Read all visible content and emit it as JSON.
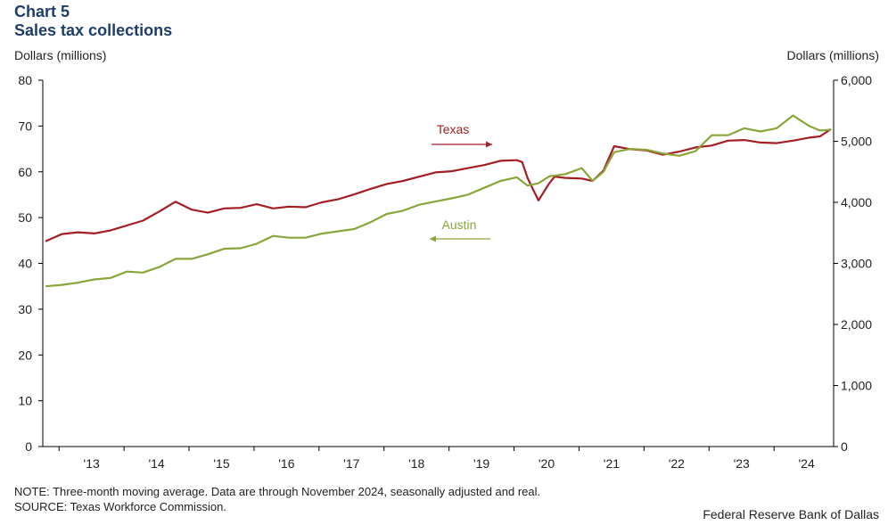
{
  "header": {
    "chart_number": "Chart 5",
    "title": "Sales tax collections",
    "left_unit": "Dollars (millions)",
    "right_unit": "Dollars (millions)"
  },
  "footer": {
    "note": "NOTE: Three-month moving average. Data are through November 2024, seasonally adjusted and real.",
    "source": "SOURCE: Texas Workforce Commission.",
    "credit": "Federal Reserve Bank of Dallas"
  },
  "colors": {
    "texas": "#a31f24",
    "austin": "#8aa63a",
    "axis": "#000000"
  },
  "chart_data": {
    "type": "line",
    "title": "Sales tax collections",
    "x_start": "2012-10",
    "x_end": "2024-11",
    "x_tick_labels": [
      "'13",
      "'14",
      "'15",
      "'16",
      "'17",
      "'18",
      "'19",
      "'20",
      "'21",
      "'22",
      "'23",
      "'24"
    ],
    "y_left": {
      "label": "Dollars (millions)",
      "lim": [
        0,
        80
      ],
      "ticks": [
        "0",
        "10",
        "20",
        "30",
        "40",
        "50",
        "60",
        "70",
        "80"
      ]
    },
    "y_right": {
      "label": "Dollars (millions)",
      "lim": [
        0,
        6000
      ],
      "ticks": [
        "0",
        "1,000",
        "2,000",
        "3,000",
        "4,000",
        "5,000",
        "6,000"
      ]
    },
    "grid": false,
    "series": [
      {
        "name": "Texas",
        "axis": "right",
        "color": "#a31f24",
        "points": [
          [
            "2012-10",
            3360
          ],
          [
            "2013-01",
            3480
          ],
          [
            "2013-04",
            3510
          ],
          [
            "2013-07",
            3490
          ],
          [
            "2013-10",
            3540
          ],
          [
            "2014-01",
            3620
          ],
          [
            "2014-04",
            3700
          ],
          [
            "2014-07",
            3850
          ],
          [
            "2014-10",
            4010
          ],
          [
            "2015-01",
            3880
          ],
          [
            "2015-04",
            3830
          ],
          [
            "2015-07",
            3900
          ],
          [
            "2015-10",
            3910
          ],
          [
            "2016-01",
            3970
          ],
          [
            "2016-04",
            3900
          ],
          [
            "2016-07",
            3930
          ],
          [
            "2016-10",
            3920
          ],
          [
            "2017-01",
            4000
          ],
          [
            "2017-04",
            4050
          ],
          [
            "2017-07",
            4130
          ],
          [
            "2017-10",
            4220
          ],
          [
            "2018-01",
            4300
          ],
          [
            "2018-04",
            4350
          ],
          [
            "2018-07",
            4420
          ],
          [
            "2018-10",
            4490
          ],
          [
            "2019-01",
            4510
          ],
          [
            "2019-04",
            4560
          ],
          [
            "2019-07",
            4610
          ],
          [
            "2019-10",
            4680
          ],
          [
            "2020-01",
            4690
          ],
          [
            "2020-02",
            4660
          ],
          [
            "2020-03",
            4400
          ],
          [
            "2020-05",
            4030
          ],
          [
            "2020-07",
            4310
          ],
          [
            "2020-08",
            4420
          ],
          [
            "2020-10",
            4400
          ],
          [
            "2021-01",
            4390
          ],
          [
            "2021-03",
            4350
          ],
          [
            "2021-05",
            4520
          ],
          [
            "2021-07",
            4920
          ],
          [
            "2021-10",
            4870
          ],
          [
            "2022-01",
            4850
          ],
          [
            "2022-04",
            4780
          ],
          [
            "2022-07",
            4830
          ],
          [
            "2022-10",
            4900
          ],
          [
            "2023-01",
            4930
          ],
          [
            "2023-04",
            5010
          ],
          [
            "2023-07",
            5020
          ],
          [
            "2023-10",
            4980
          ],
          [
            "2024-01",
            4970
          ],
          [
            "2024-04",
            5010
          ],
          [
            "2024-07",
            5060
          ],
          [
            "2024-09",
            5080
          ],
          [
            "2024-11",
            5200
          ]
        ]
      },
      {
        "name": "Austin",
        "axis": "left",
        "color": "#8aa63a",
        "points": [
          [
            "2012-10",
            35.0
          ],
          [
            "2013-01",
            35.3
          ],
          [
            "2013-04",
            35.8
          ],
          [
            "2013-07",
            36.5
          ],
          [
            "2013-10",
            36.8
          ],
          [
            "2014-01",
            38.2
          ],
          [
            "2014-04",
            38.0
          ],
          [
            "2014-07",
            39.2
          ],
          [
            "2014-10",
            41.0
          ],
          [
            "2015-01",
            41.0
          ],
          [
            "2015-04",
            42.0
          ],
          [
            "2015-07",
            43.2
          ],
          [
            "2015-10",
            43.3
          ],
          [
            "2016-01",
            44.3
          ],
          [
            "2016-04",
            46.0
          ],
          [
            "2016-07",
            45.6
          ],
          [
            "2016-10",
            45.6
          ],
          [
            "2017-01",
            46.5
          ],
          [
            "2017-04",
            47.0
          ],
          [
            "2017-07",
            47.5
          ],
          [
            "2017-10",
            49.0
          ],
          [
            "2018-01",
            50.8
          ],
          [
            "2018-04",
            51.5
          ],
          [
            "2018-07",
            52.8
          ],
          [
            "2018-10",
            53.5
          ],
          [
            "2019-01",
            54.2
          ],
          [
            "2019-04",
            55.0
          ],
          [
            "2019-07",
            56.5
          ],
          [
            "2019-10",
            58.0
          ],
          [
            "2020-01",
            58.8
          ],
          [
            "2020-03",
            57.0
          ],
          [
            "2020-05",
            57.5
          ],
          [
            "2020-07",
            59.0
          ],
          [
            "2020-10",
            59.5
          ],
          [
            "2021-01",
            60.8
          ],
          [
            "2021-03",
            58.0
          ],
          [
            "2021-05",
            60.0
          ],
          [
            "2021-07",
            64.3
          ],
          [
            "2021-10",
            65.0
          ],
          [
            "2022-01",
            64.8
          ],
          [
            "2022-04",
            64.0
          ],
          [
            "2022-07",
            63.5
          ],
          [
            "2022-10",
            64.5
          ],
          [
            "2023-01",
            68.0
          ],
          [
            "2023-04",
            68.0
          ],
          [
            "2023-07",
            69.5
          ],
          [
            "2023-10",
            68.8
          ],
          [
            "2024-01",
            69.5
          ],
          [
            "2024-04",
            72.3
          ],
          [
            "2024-07",
            70.0
          ],
          [
            "2024-09",
            69.0
          ],
          [
            "2024-11",
            69.2
          ]
        ]
      }
    ],
    "annotations": [
      {
        "text": "Texas",
        "series": "Texas",
        "arrow": "right"
      },
      {
        "text": "Austin",
        "series": "Austin",
        "arrow": "left"
      }
    ]
  }
}
